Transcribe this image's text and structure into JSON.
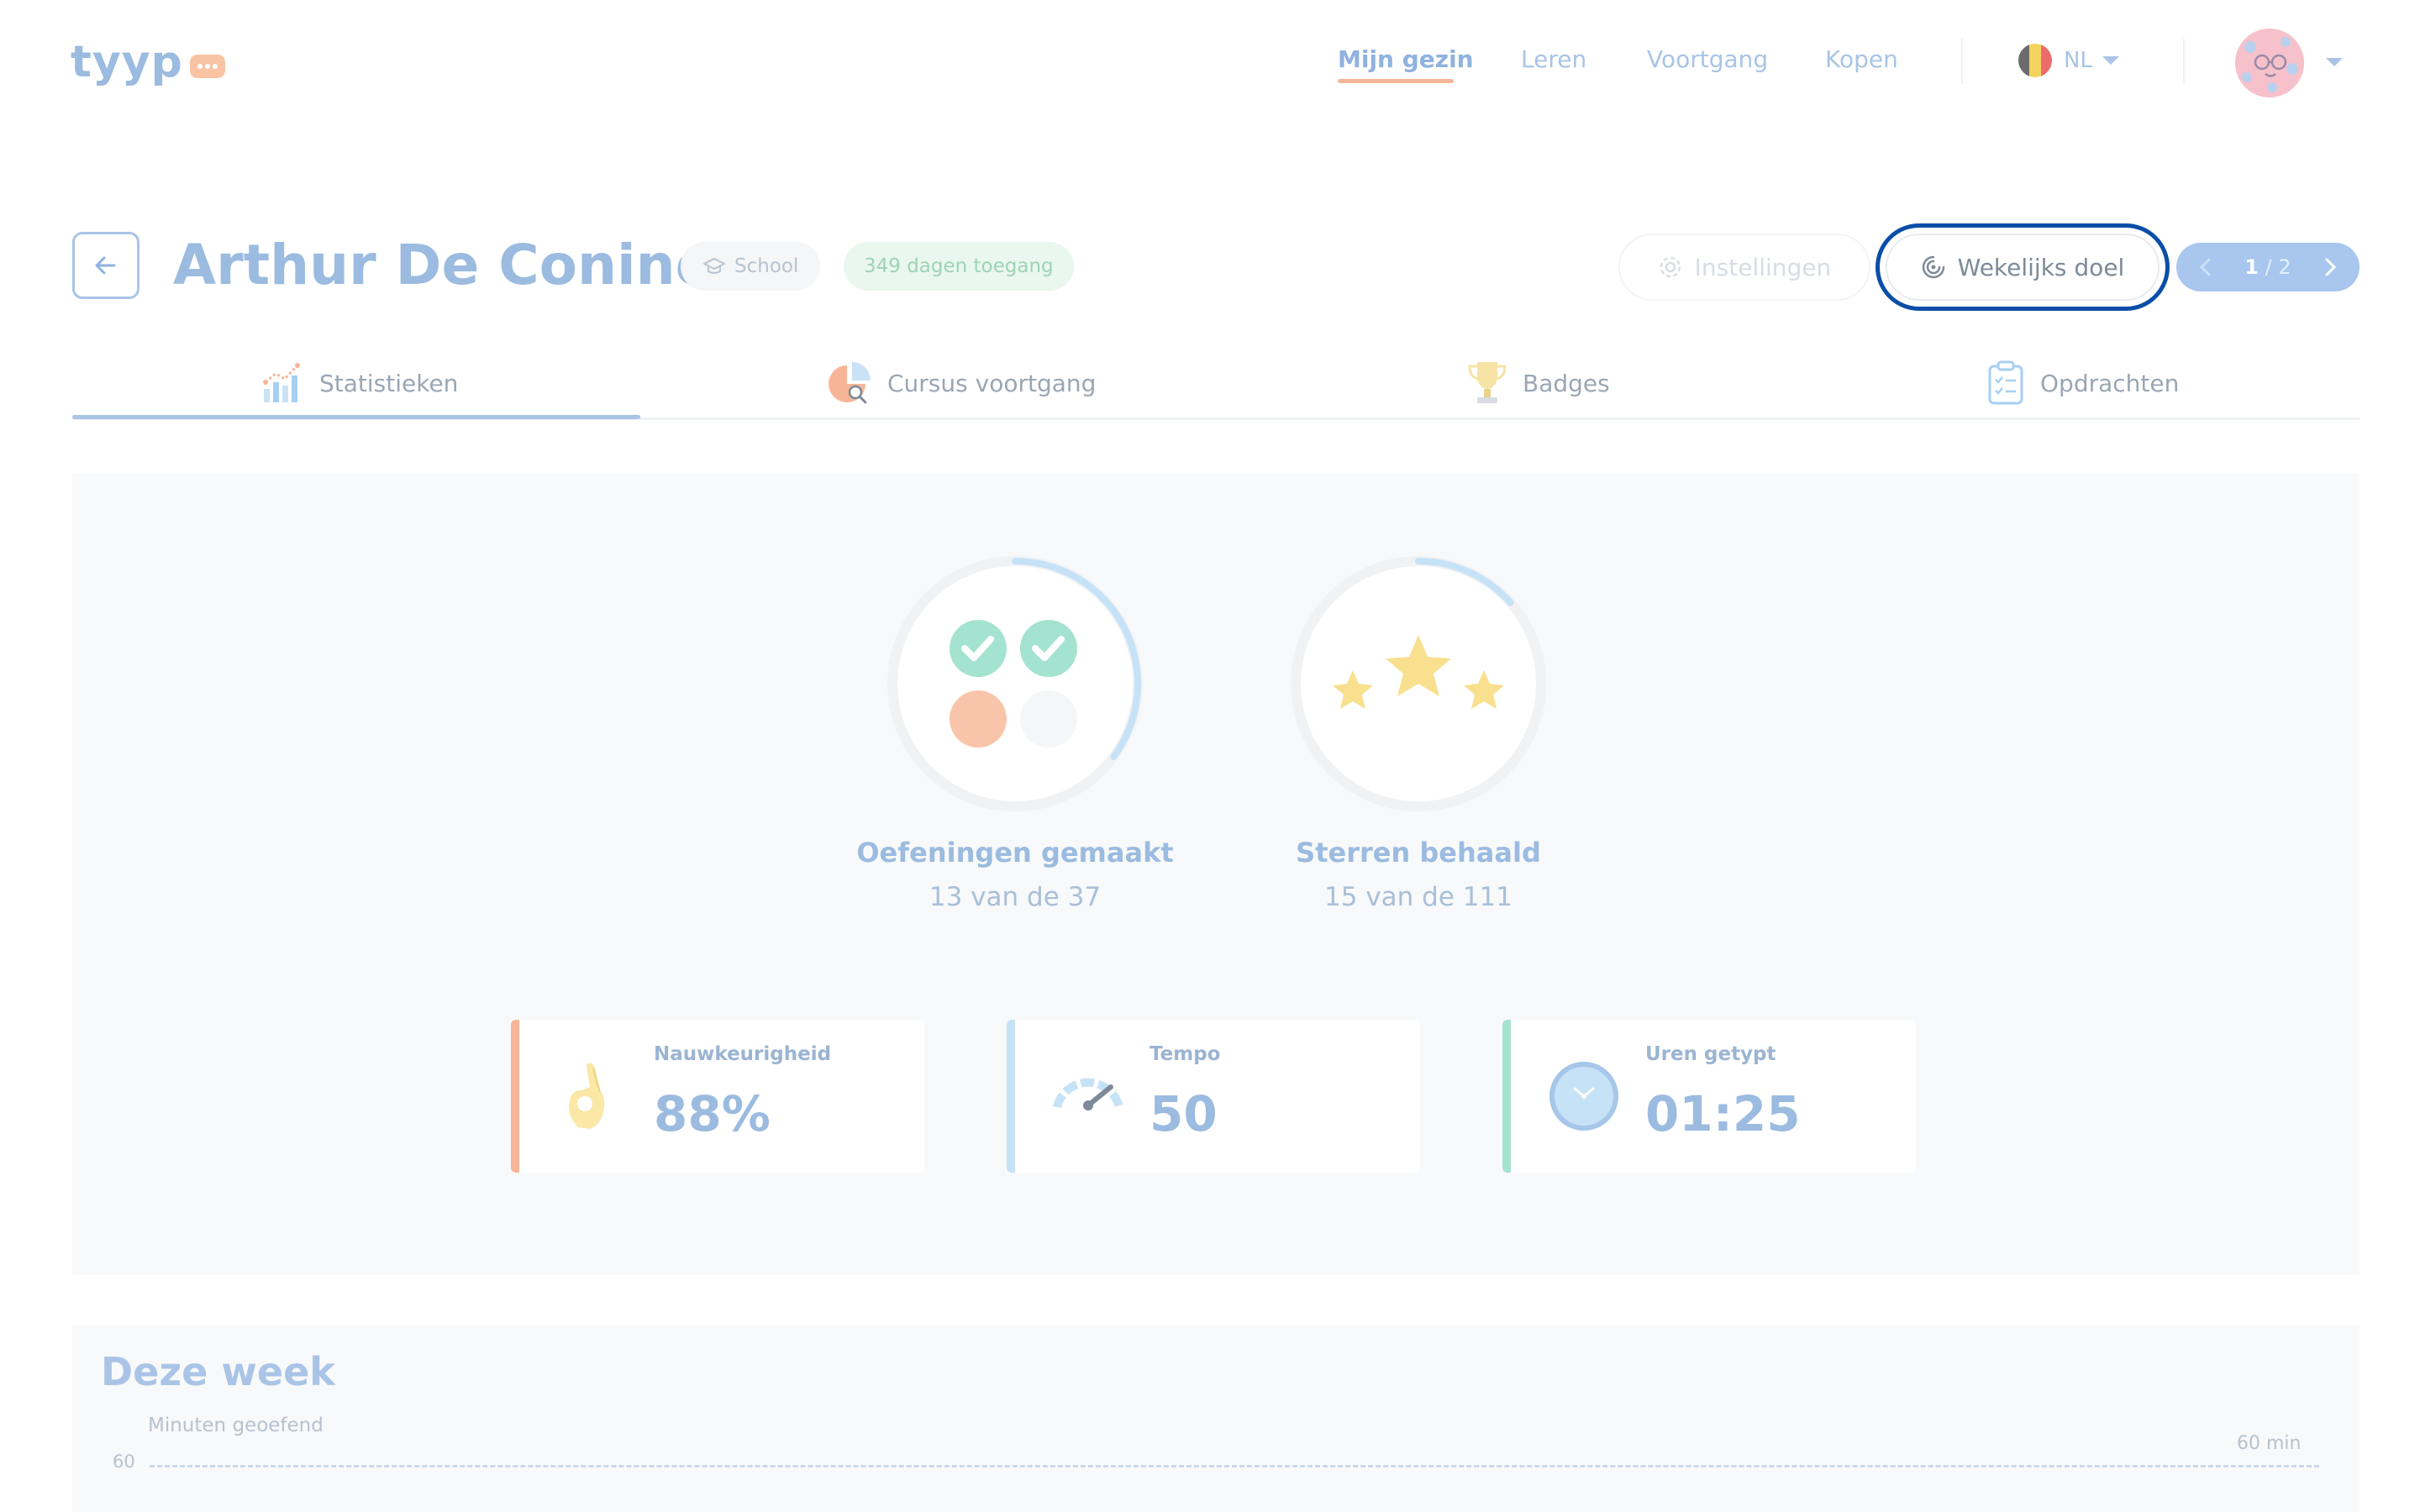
{
  "header": {
    "logo": "tyyp",
    "nav": [
      "Mijn gezin",
      "Leren",
      "Voortgang",
      "Kopen"
    ],
    "nav_active": "Mijn gezin",
    "language": "NL",
    "avatar": "avatar-icon"
  },
  "student": {
    "name": "Arthur De Coninck",
    "type_badge": "School",
    "access_badge": "349 dagen toegang"
  },
  "actions": {
    "settings": "Instellingen",
    "weekly_goal": "Wekelijks doel",
    "pager_current": "1",
    "pager_total": " / 2"
  },
  "tabs": [
    {
      "label": "Statistieken",
      "icon": "chart-icon",
      "active": true
    },
    {
      "label": "Cursus voortgang",
      "icon": "pie-chart-icon",
      "active": false
    },
    {
      "label": "Badges",
      "icon": "trophy-icon",
      "active": false
    },
    {
      "label": "Opdrachten",
      "icon": "clipboard-icon",
      "active": false
    }
  ],
  "stats": {
    "exercises": {
      "label": "Oefeningen gemaakt",
      "text": "13 van de 37",
      "done": 13,
      "total": 37
    },
    "stars": {
      "label": "Sterren behaald",
      "text": "15 van de 111",
      "done": 15,
      "total": 111
    }
  },
  "cards": [
    {
      "label": "Nauwkeurigheid",
      "value": "88%",
      "icon": "ok-hand-icon",
      "accent": "#f7b597"
    },
    {
      "label": "Tempo",
      "value": "50",
      "icon": "speedometer-icon",
      "accent": "#c6e2f7"
    },
    {
      "label": "Uren getypt",
      "value": "01:25",
      "icon": "clock-icon",
      "accent": "#a4e3cf"
    }
  ],
  "week": {
    "title": "Deze week",
    "ylabel": "Minuten geoefend",
    "tick": "60",
    "goal_label": "60 min"
  },
  "colors": {
    "primary": "#9bbbe0",
    "accent_orange": "#f7b597",
    "focus_ring": "#0a4ea8",
    "panel_bg": "#f8f9fa"
  }
}
